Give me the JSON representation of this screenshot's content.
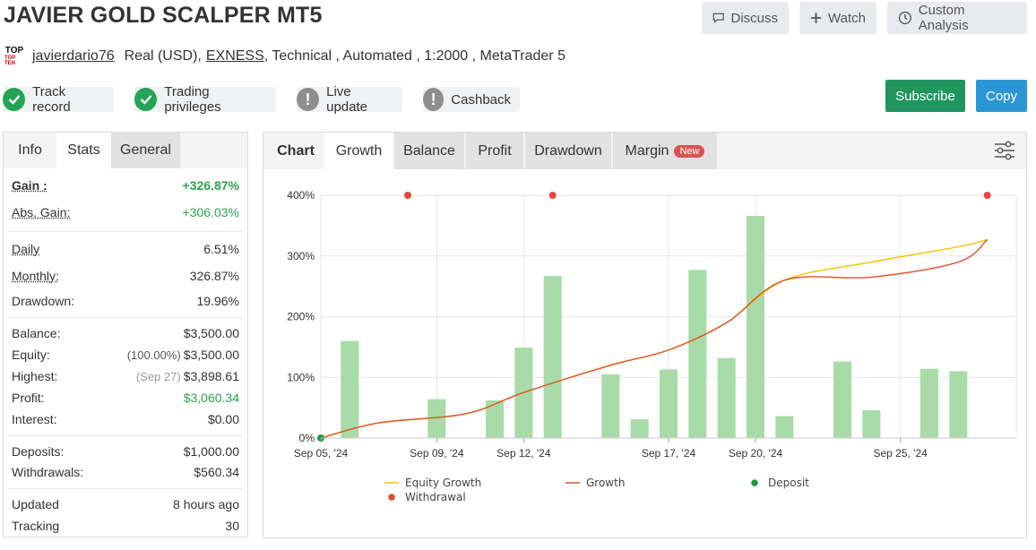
{
  "header": {
    "title": "JAVIER GOLD SCALPER MT5",
    "buttons": {
      "discuss": "Discuss",
      "watch": "Watch",
      "custom_analysis": "Custom Analysis"
    }
  },
  "meta": {
    "logo_top": "TOP",
    "logo_bottom": "TOP TEN",
    "user": "javierdario76",
    "account": "Real (USD),",
    "broker": "EXNESS",
    "details": ", Technical , Automated , 1:2000 , MetaTrader 5"
  },
  "badges": [
    {
      "label": "Track record",
      "status": "ok"
    },
    {
      "label": "Trading privileges",
      "status": "ok"
    },
    {
      "label": "Live update",
      "status": "warn"
    },
    {
      "label": "Cashback",
      "status": "warn"
    }
  ],
  "actions": {
    "subscribe": "Subscribe",
    "copy": "Copy"
  },
  "left_tabs": {
    "info": "Info",
    "stats": "Stats",
    "general": "General"
  },
  "stats": {
    "gain": {
      "label": "Gain :",
      "value": "+326.87%"
    },
    "abs_gain": {
      "label": "Abs. Gain:",
      "value": "+306.03%"
    },
    "daily": {
      "label": "Daily",
      "value": "6.51%"
    },
    "monthly": {
      "label": "Monthly:",
      "value": "326.87%"
    },
    "drawdown": {
      "label": "Drawdown:",
      "value": "19.96%"
    },
    "balance": {
      "label": "Balance:",
      "value": "$3,500.00"
    },
    "equity": {
      "label": "Equity:",
      "sub": "(100.00%)",
      "value": "$3,500.00"
    },
    "highest": {
      "label": "Highest:",
      "sub": "(Sep 27)",
      "value": "$3,898.61"
    },
    "profit": {
      "label": "Profit:",
      "value": "$3,060.34"
    },
    "interest": {
      "label": "Interest:",
      "value": "$0.00"
    },
    "deposits": {
      "label": "Deposits:",
      "value": "$1,000.00"
    },
    "withdrawals": {
      "label": "Withdrawals:",
      "value": "$560.34"
    },
    "updated": {
      "label": "Updated",
      "value": "8 hours ago"
    },
    "tracking": {
      "label": "Tracking",
      "value": "30"
    }
  },
  "chart_tabs": {
    "chart": "Chart",
    "growth": "Growth",
    "balance": "Balance",
    "profit": "Profit",
    "drawdown": "Drawdown",
    "margin": "Margin",
    "new_badge": "New"
  },
  "chart_data": {
    "type": "bar",
    "x_range": [
      "2024-09-05",
      "2024-09-29"
    ],
    "x_ticks": [
      {
        "date": "2024-09-05",
        "label": "Sep 05, '24"
      },
      {
        "date": "2024-09-09",
        "label": "Sep 09, '24"
      },
      {
        "date": "2024-09-12",
        "label": "Sep 12, '24"
      },
      {
        "date": "2024-09-17",
        "label": "Sep 17, '24"
      },
      {
        "date": "2024-09-20",
        "label": "Sep 20, '24"
      },
      {
        "date": "2024-09-25",
        "label": "Sep 25, '24"
      }
    ],
    "y_ticks": [
      "0%",
      "100%",
      "200%",
      "300%",
      "400%"
    ],
    "ylim": [
      0,
      400
    ],
    "grid": true,
    "colors": {
      "bars": "#a8dba8",
      "equity": "#f5c400",
      "growth": "#e0522c",
      "deposit": "#1a9c3c",
      "withdrawal": "#e04a3a",
      "grid": "#e6e6e6"
    },
    "bars": {
      "dates": [
        "2024-09-06",
        "2024-09-08",
        "2024-09-09",
        "2024-09-11",
        "2024-09-12",
        "2024-09-13",
        "2024-09-15",
        "2024-09-16",
        "2024-09-17",
        "2024-09-18",
        "2024-09-19",
        "2024-09-20",
        "2024-09-21",
        "2024-09-23",
        "2024-09-24",
        "2024-09-26",
        "2024-09-27",
        "2024-09-28"
      ],
      "values": [
        160,
        0,
        64,
        62,
        149,
        267,
        105,
        31,
        113,
        277,
        132,
        366,
        36,
        126,
        46,
        114,
        110,
        0
      ]
    },
    "series": [
      {
        "name": "Equity Growth",
        "x": [
          "2024-09-05",
          "2024-09-07",
          "2024-09-10",
          "2024-09-12",
          "2024-09-15",
          "2024-09-17",
          "2024-09-19",
          "2024-09-21",
          "2024-09-24",
          "2024-09-27",
          "2024-09-28"
        ],
        "y": [
          0,
          25,
          40,
          75,
          120,
          145,
          190,
          260,
          290,
          315,
          327
        ]
      },
      {
        "name": "Growth",
        "x": [
          "2024-09-05",
          "2024-09-07",
          "2024-09-10",
          "2024-09-12",
          "2024-09-15",
          "2024-09-17",
          "2024-09-19",
          "2024-09-21",
          "2024-09-24",
          "2024-09-27",
          "2024-09-28"
        ],
        "y": [
          0,
          25,
          40,
          75,
          120,
          145,
          190,
          260,
          265,
          290,
          327
        ]
      }
    ],
    "deposits": [
      {
        "date": "2024-09-05",
        "value": 0
      }
    ],
    "withdrawals": [
      {
        "date": "2024-09-08",
        "value": 400
      },
      {
        "date": "2024-09-13",
        "value": 400
      },
      {
        "date": "2024-09-28",
        "value": 400
      }
    ],
    "legend": {
      "equity": "Equity Growth",
      "growth": "Growth",
      "deposit": "Deposit",
      "withdrawal": "Withdrawal"
    }
  }
}
